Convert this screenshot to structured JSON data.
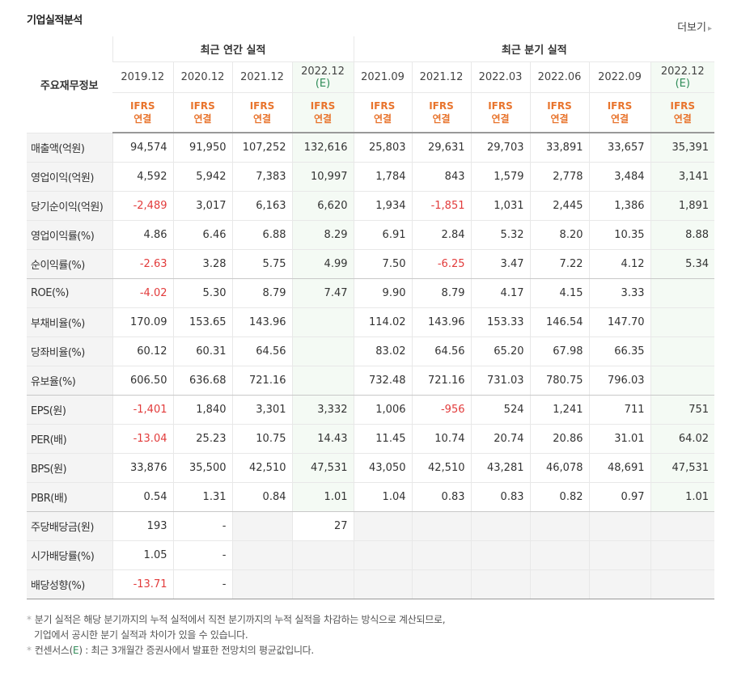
{
  "section_title": "기업실적분석",
  "more_label": "더보기",
  "header": {
    "label_col": "주요재무정보",
    "annual_group": "최근 연간 실적",
    "quarter_group": "최근 분기 실적",
    "periods": [
      "2019.12",
      "2020.12",
      "2021.12",
      "2022.12",
      "2021.09",
      "2021.12",
      "2022.03",
      "2022.06",
      "2022.09",
      "2022.12"
    ],
    "estimate_mark": "(E)",
    "ifrs_top": "IFRS",
    "ifrs_bottom": "연결"
  },
  "rows": [
    {
      "label": "매출액(억원)",
      "values": [
        "94,574",
        "91,950",
        "107,252",
        "132,616",
        "25,803",
        "29,631",
        "29,703",
        "33,891",
        "33,657",
        "35,391"
      ]
    },
    {
      "label": "영업이익(억원)",
      "values": [
        "4,592",
        "5,942",
        "7,383",
        "10,997",
        "1,784",
        "843",
        "1,579",
        "2,778",
        "3,484",
        "3,141"
      ]
    },
    {
      "label": "당기순이익(억원)",
      "values": [
        "-2,489",
        "3,017",
        "6,163",
        "6,620",
        "1,934",
        "-1,851",
        "1,031",
        "2,445",
        "1,386",
        "1,891"
      ]
    },
    {
      "label": "영업이익률(%)",
      "values": [
        "4.86",
        "6.46",
        "6.88",
        "8.29",
        "6.91",
        "2.84",
        "5.32",
        "8.20",
        "10.35",
        "8.88"
      ]
    },
    {
      "label": "순이익률(%)",
      "values": [
        "-2.63",
        "3.28",
        "5.75",
        "4.99",
        "7.50",
        "-6.25",
        "3.47",
        "7.22",
        "4.12",
        "5.34"
      ]
    },
    {
      "label": "ROE(%)",
      "values": [
        "-4.02",
        "5.30",
        "8.79",
        "7.47",
        "9.90",
        "8.79",
        "4.17",
        "4.15",
        "3.33",
        ""
      ]
    },
    {
      "label": "부채비율(%)",
      "values": [
        "170.09",
        "153.65",
        "143.96",
        "",
        "114.02",
        "143.96",
        "153.33",
        "146.54",
        "147.70",
        ""
      ]
    },
    {
      "label": "당좌비율(%)",
      "values": [
        "60.12",
        "60.31",
        "64.56",
        "",
        "83.02",
        "64.56",
        "65.20",
        "67.98",
        "66.35",
        ""
      ]
    },
    {
      "label": "유보율(%)",
      "values": [
        "606.50",
        "636.68",
        "721.16",
        "",
        "732.48",
        "721.16",
        "731.03",
        "780.75",
        "796.03",
        ""
      ]
    },
    {
      "label": "EPS(원)",
      "values": [
        "-1,401",
        "1,840",
        "3,301",
        "3,332",
        "1,006",
        "-956",
        "524",
        "1,241",
        "711",
        "751"
      ]
    },
    {
      "label": "PER(배)",
      "values": [
        "-13.04",
        "25.23",
        "10.75",
        "14.43",
        "11.45",
        "10.74",
        "20.74",
        "20.86",
        "31.01",
        "64.02"
      ]
    },
    {
      "label": "BPS(원)",
      "values": [
        "33,876",
        "35,500",
        "42,510",
        "47,531",
        "43,050",
        "42,510",
        "43,281",
        "46,078",
        "48,691",
        "47,531"
      ]
    },
    {
      "label": "PBR(배)",
      "values": [
        "0.54",
        "1.31",
        "0.84",
        "1.01",
        "1.04",
        "0.83",
        "0.83",
        "0.82",
        "0.97",
        "1.01"
      ]
    },
    {
      "label": "주당배당금(원)",
      "values": [
        "193",
        "-",
        "",
        "27",
        "",
        "",
        "",
        "",
        "",
        ""
      ]
    },
    {
      "label": "시가배당률(%)",
      "values": [
        "1.05",
        "-",
        "",
        "",
        "",
        "",
        "",
        "",
        "",
        ""
      ]
    },
    {
      "label": "배당성향(%)",
      "values": [
        "-13.71",
        "-",
        "",
        "",
        "",
        "",
        "",
        "",
        "",
        ""
      ]
    }
  ],
  "notes": {
    "line1": "분기 실적은 해당 분기까지의 누적 실적에서 직전 분기까지의 누적 실적을 차감하는 방식으로 계산되므로,",
    "line2": "기업에서 공시한 분기 실적과 차이가 있을 수 있습니다.",
    "line3_prefix": "컨센서스(",
    "line3_e": "E",
    "line3_suffix": ") : 최근 3개월간 증권사에서 발표한 전망치의 평균값입니다."
  },
  "colors": {
    "negative": "#e23b3b",
    "ifrs": "#e8742d",
    "estimate": "#2e8b57"
  }
}
